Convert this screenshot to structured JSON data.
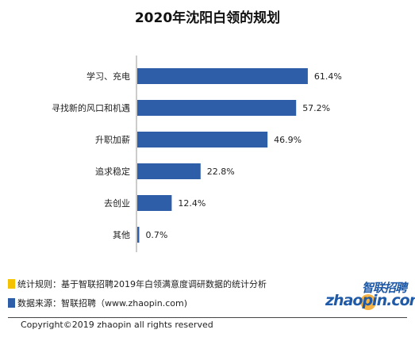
{
  "chart_data": {
    "type": "bar",
    "orientation": "horizontal",
    "title": "2020年沈阳白领的规划",
    "categories": [
      "学习、充电",
      "寻找新的风口和机遇",
      "升职加薪",
      "追求稳定",
      "去创业",
      "其他"
    ],
    "values": [
      61.4,
      57.2,
      46.9,
      22.8,
      12.4,
      0.7
    ],
    "value_labels": [
      "61.4%",
      "57.2%",
      "46.9%",
      "22.8%",
      "12.4%",
      "0.7%"
    ],
    "unit": "%",
    "xlim": [
      0,
      100
    ],
    "grid": false,
    "legend": "none",
    "bar_color": "#2e5ea8"
  },
  "footer": {
    "rule_text": "统计规则：基于智联招聘2019年白领满意度调研数据的统计分析",
    "source_text": "数据来源：智联招聘（www.zhaopin.com)",
    "copyright": "Copyright©2019 zhaopin all rights reserved",
    "marker_colors": [
      "#f5c200",
      "#2e5ea8"
    ]
  },
  "logo": {
    "cn": "智联招聘",
    "en": "zhaopin.com"
  }
}
